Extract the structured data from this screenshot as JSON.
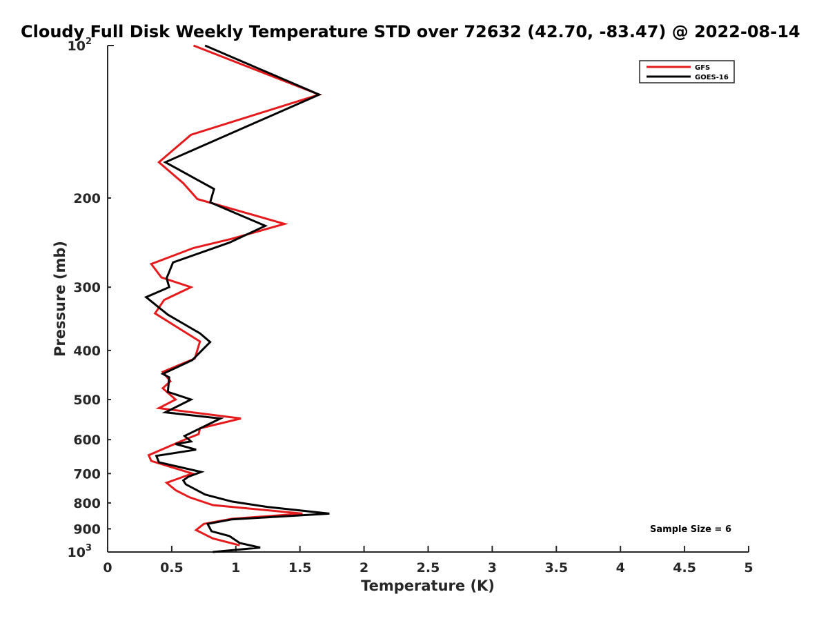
{
  "chart_data": {
    "type": "line",
    "title": "Cloudy Full Disk Weekly Temperature STD over 72632 (42.70, -83.47) @ 2022-08-14",
    "xlabel": "Temperature (K)",
    "ylabel": "Pressure (mb)",
    "xlim": [
      0,
      5
    ],
    "ylim": [
      100,
      1000
    ],
    "yscale": "log",
    "y_reversed": true,
    "grid": false,
    "legend_position": "top-right",
    "x_ticks": [
      "0",
      "0.5",
      "1",
      "1.5",
      "2",
      "2.5",
      "3",
      "3.5",
      "4",
      "4.5",
      "5"
    ],
    "x_tick_values": [
      0,
      0.5,
      1,
      1.5,
      2,
      2.5,
      3,
      3.5,
      4,
      4.5,
      5
    ],
    "y_ticks": [
      {
        "value": 100,
        "base": "10",
        "exp": "2"
      },
      {
        "value": 200,
        "label": "200"
      },
      {
        "value": 300,
        "label": "300"
      },
      {
        "value": 400,
        "label": "400"
      },
      {
        "value": 500,
        "label": "500"
      },
      {
        "value": 600,
        "label": "600"
      },
      {
        "value": 700,
        "label": "700"
      },
      {
        "value": 800,
        "label": "800"
      },
      {
        "value": 900,
        "label": "900"
      },
      {
        "value": 1000,
        "base": "10",
        "exp": "3"
      }
    ],
    "annotation": "Sample Size = 6",
    "series": [
      {
        "name": "GFS",
        "color": "#e41a1c",
        "points": [
          [
            0.67,
            100
          ],
          [
            1.65,
            125
          ],
          [
            0.65,
            150
          ],
          [
            0.4,
            170
          ],
          [
            0.59,
            187
          ],
          [
            0.7,
            201
          ],
          [
            1.38,
            225
          ],
          [
            0.96,
            241
          ],
          [
            0.67,
            251
          ],
          [
            0.34,
            270
          ],
          [
            0.42,
            287
          ],
          [
            0.65,
            300
          ],
          [
            0.44,
            318
          ],
          [
            0.37,
            338
          ],
          [
            0.72,
            384
          ],
          [
            0.68,
            415
          ],
          [
            0.43,
            441
          ],
          [
            0.49,
            460
          ],
          [
            0.43,
            475
          ],
          [
            0.53,
            500
          ],
          [
            0.4,
            520
          ],
          [
            1.04,
            545
          ],
          [
            0.72,
            570
          ],
          [
            0.71,
            585
          ],
          [
            0.6,
            600
          ],
          [
            0.32,
            644
          ],
          [
            0.34,
            661
          ],
          [
            0.66,
            700
          ],
          [
            0.46,
            730
          ],
          [
            0.53,
            755
          ],
          [
            0.64,
            780
          ],
          [
            0.82,
            808
          ],
          [
            1.52,
            840
          ],
          [
            0.97,
            860
          ],
          [
            0.75,
            880
          ],
          [
            0.69,
            905
          ],
          [
            0.82,
            940
          ],
          [
            1.03,
            970
          ]
        ]
      },
      {
        "name": "GOES-16",
        "color": "#000000",
        "points": [
          [
            0.76,
            100
          ],
          [
            1.65,
            125
          ],
          [
            0.45,
            170
          ],
          [
            0.83,
            192
          ],
          [
            0.8,
            204
          ],
          [
            1.23,
            227
          ],
          [
            0.95,
            245
          ],
          [
            0.51,
            268
          ],
          [
            0.46,
            288
          ],
          [
            0.48,
            300
          ],
          [
            0.3,
            314
          ],
          [
            0.47,
            340
          ],
          [
            0.72,
            370
          ],
          [
            0.8,
            385
          ],
          [
            0.66,
            418
          ],
          [
            0.43,
            445
          ],
          [
            0.48,
            452
          ],
          [
            0.47,
            483
          ],
          [
            0.65,
            500
          ],
          [
            0.45,
            530
          ],
          [
            0.88,
            545
          ],
          [
            0.6,
            590
          ],
          [
            0.65,
            605
          ],
          [
            0.53,
            612
          ],
          [
            0.69,
            628
          ],
          [
            0.38,
            646
          ],
          [
            0.4,
            665
          ],
          [
            0.73,
            695
          ],
          [
            0.63,
            710
          ],
          [
            0.59,
            722
          ],
          [
            0.61,
            735
          ],
          [
            0.76,
            770
          ],
          [
            0.97,
            795
          ],
          [
            1.25,
            815
          ],
          [
            1.73,
            840
          ],
          [
            0.97,
            862
          ],
          [
            0.78,
            880
          ],
          [
            0.81,
            910
          ],
          [
            0.95,
            930
          ],
          [
            1.03,
            960
          ],
          [
            1.19,
            980
          ],
          [
            0.82,
            1000
          ]
        ]
      }
    ]
  }
}
